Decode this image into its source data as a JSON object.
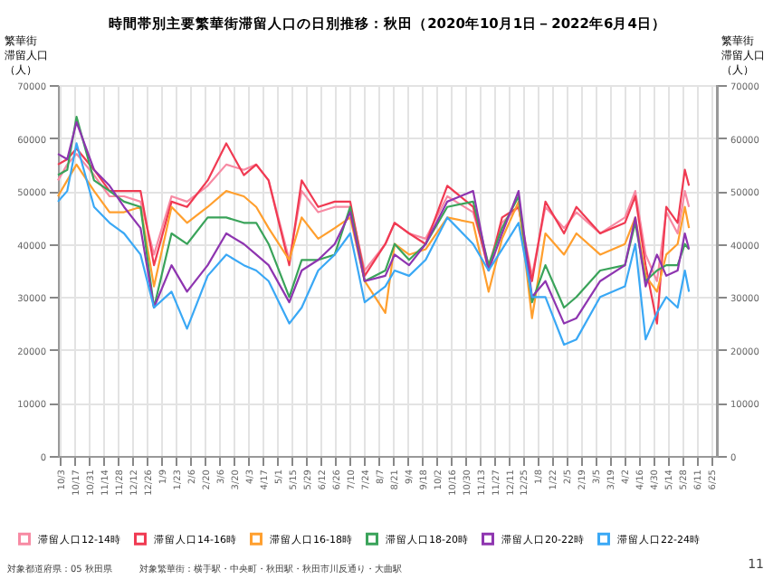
{
  "chart_data": {
    "type": "line",
    "title": "時間帯別主要繁華街滞留人口の日別推移：秋田（2020年10月1日－2022年6月4日）",
    "ylabel": "繁華街滞留人口（人）",
    "y2label": "繁華街滞留人口（人）",
    "x": [
      "2020-10-01",
      "2020-10-10",
      "2020-10-19",
      "2020-11-05",
      "2020-11-20",
      "2020-12-04",
      "2020-12-20",
      "2021-01-02",
      "2021-01-19",
      "2021-02-03",
      "2021-02-23",
      "2021-03-13",
      "2021-03-30",
      "2021-04-11",
      "2021-04-23",
      "2021-05-13",
      "2021-05-25",
      "2021-06-10",
      "2021-06-26",
      "2021-07-11",
      "2021-07-25",
      "2021-08-14",
      "2021-08-23",
      "2021-09-06",
      "2021-09-22",
      "2021-10-13",
      "2021-11-07",
      "2021-11-22",
      "2021-12-05",
      "2021-12-21",
      "2022-01-03",
      "2022-01-16",
      "2022-02-03",
      "2022-02-15",
      "2022-03-10",
      "2022-04-03",
      "2022-04-13",
      "2022-04-23",
      "2022-05-04",
      "2022-05-13",
      "2022-05-24",
      "2022-05-31",
      "2022-06-04"
    ],
    "series": [
      {
        "name": "滞留人口12-14時",
        "color": "#f78aa3",
        "values": [
          52000,
          55000,
          57000,
          53000,
          49000,
          49000,
          48000,
          38000,
          49000,
          48000,
          51000,
          55000,
          54000,
          55000,
          52000,
          37000,
          50000,
          46000,
          47000,
          47000,
          35000,
          40000,
          44000,
          42000,
          41000,
          49000,
          46000,
          36000,
          44000,
          47000,
          34000,
          47000,
          43000,
          46000,
          42000,
          45000,
          50000,
          38000,
          33000,
          46000,
          42000,
          50000,
          47000
        ]
      },
      {
        "name": "滞留人口14-16時",
        "color": "#f03a52",
        "values": [
          55000,
          56000,
          58000,
          54000,
          50000,
          50000,
          50000,
          36000,
          48000,
          47000,
          52000,
          59000,
          53000,
          55000,
          52000,
          36000,
          52000,
          47000,
          48000,
          48000,
          34000,
          40000,
          44000,
          42000,
          40000,
          51000,
          47000,
          35000,
          45000,
          47000,
          33000,
          48000,
          42000,
          47000,
          42000,
          44000,
          49000,
          36000,
          25000,
          47000,
          44000,
          54000,
          51000
        ]
      },
      {
        "name": "滞留人口16-18時",
        "color": "#ff9f2e",
        "values": [
          49000,
          52000,
          55000,
          50000,
          46000,
          46000,
          47000,
          32000,
          47000,
          44000,
          47000,
          50000,
          49000,
          47000,
          43000,
          37000,
          45000,
          41000,
          43000,
          45000,
          33000,
          27000,
          40000,
          38000,
          39000,
          45000,
          44000,
          31000,
          41000,
          48000,
          26000,
          42000,
          38000,
          42000,
          38000,
          40000,
          45000,
          34000,
          31000,
          38000,
          40000,
          47000,
          43000
        ]
      },
      {
        "name": "滞留人口18-20時",
        "color": "#3aa35a",
        "values": [
          53000,
          54000,
          64000,
          52000,
          50000,
          48000,
          47000,
          28000,
          42000,
          40000,
          45000,
          45000,
          44000,
          44000,
          40000,
          30000,
          37000,
          37000,
          38000,
          47000,
          33000,
          35000,
          40000,
          37000,
          40000,
          47000,
          48000,
          36000,
          43000,
          49000,
          29000,
          36000,
          28000,
          30000,
          35000,
          36000,
          44000,
          33000,
          35000,
          36000,
          36000,
          40000,
          39000
        ]
      },
      {
        "name": "滞留人口20-22時",
        "color": "#8e35b0",
        "values": [
          57000,
          56000,
          63000,
          54000,
          51000,
          47000,
          43000,
          28000,
          36000,
          31000,
          36000,
          42000,
          40000,
          38000,
          36000,
          29000,
          35000,
          37000,
          40000,
          46000,
          33000,
          34000,
          38000,
          36000,
          40000,
          48000,
          50000,
          35000,
          42000,
          50000,
          30000,
          33000,
          25000,
          26000,
          33000,
          36000,
          45000,
          32000,
          38000,
          34000,
          35000,
          42000,
          39000
        ]
      },
      {
        "name": "滞留人口22-24時",
        "color": "#3aa8f5",
        "values": [
          48000,
          50000,
          59000,
          47000,
          44000,
          42000,
          38000,
          28000,
          31000,
          24000,
          34000,
          38000,
          36000,
          35000,
          33000,
          25000,
          28000,
          35000,
          38000,
          42000,
          29000,
          32000,
          35000,
          34000,
          37000,
          45000,
          40000,
          35000,
          39000,
          44000,
          30000,
          30000,
          21000,
          22000,
          30000,
          32000,
          40000,
          22000,
          27000,
          30000,
          28000,
          35000,
          31000
        ]
      }
    ],
    "xlim": [
      "2020-10-01",
      "2022-07-01"
    ],
    "xticks": [
      {
        "value": "2020-10-03",
        "label": "10/3"
      },
      {
        "value": "2020-10-17",
        "label": "10/17"
      },
      {
        "value": "2020-10-31",
        "label": "10/31"
      },
      {
        "value": "2020-11-14",
        "label": "11/14"
      },
      {
        "value": "2020-11-28",
        "label": "11/28"
      },
      {
        "value": "2020-12-12",
        "label": "12/12"
      },
      {
        "value": "2020-12-26",
        "label": "12/26"
      },
      {
        "value": "2021-01-09",
        "label": "1/9"
      },
      {
        "value": "2021-01-23",
        "label": "1/23"
      },
      {
        "value": "2021-02-06",
        "label": "2/6"
      },
      {
        "value": "2021-02-20",
        "label": "2/20"
      },
      {
        "value": "2021-03-06",
        "label": "3/6"
      },
      {
        "value": "2021-03-20",
        "label": "3/20"
      },
      {
        "value": "2021-04-03",
        "label": "4/3"
      },
      {
        "value": "2021-04-17",
        "label": "4/17"
      },
      {
        "value": "2021-05-01",
        "label": "5/1"
      },
      {
        "value": "2021-05-15",
        "label": "5/15"
      },
      {
        "value": "2021-05-29",
        "label": "5/29"
      },
      {
        "value": "2021-06-12",
        "label": "6/12"
      },
      {
        "value": "2021-06-26",
        "label": "6/26"
      },
      {
        "value": "2021-07-10",
        "label": "7/10"
      },
      {
        "value": "2021-07-24",
        "label": "7/24"
      },
      {
        "value": "2021-08-07",
        "label": "8/7"
      },
      {
        "value": "2021-08-21",
        "label": "8/21"
      },
      {
        "value": "2021-09-04",
        "label": "9/4"
      },
      {
        "value": "2021-09-18",
        "label": "9/18"
      },
      {
        "value": "2021-10-02",
        "label": "10/2"
      },
      {
        "value": "2021-10-16",
        "label": "10/16"
      },
      {
        "value": "2021-10-30",
        "label": "10/30"
      },
      {
        "value": "2021-11-13",
        "label": "11/13"
      },
      {
        "value": "2021-11-27",
        "label": "11/27"
      },
      {
        "value": "2021-12-11",
        "label": "12/11"
      },
      {
        "value": "2021-12-25",
        "label": "12/25"
      },
      {
        "value": "2022-01-08",
        "label": "1/8"
      },
      {
        "value": "2022-01-22",
        "label": "1/22"
      },
      {
        "value": "2022-02-05",
        "label": "2/5"
      },
      {
        "value": "2022-02-19",
        "label": "2/19"
      },
      {
        "value": "2022-03-05",
        "label": "3/5"
      },
      {
        "value": "2022-03-19",
        "label": "3/19"
      },
      {
        "value": "2022-04-02",
        "label": "4/2"
      },
      {
        "value": "2022-04-16",
        "label": "4/16"
      },
      {
        "value": "2022-04-30",
        "label": "4/30"
      },
      {
        "value": "2022-05-14",
        "label": "5/14"
      },
      {
        "value": "2022-05-28",
        "label": "5/28"
      },
      {
        "value": "2022-06-11",
        "label": "6/11"
      },
      {
        "value": "2022-06-25",
        "label": "6/25"
      }
    ],
    "ylim": [
      0,
      70000
    ],
    "yticks": [
      0,
      10000,
      20000,
      30000,
      40000,
      50000,
      60000,
      70000
    ],
    "y2lim": [
      0,
      70000
    ],
    "y2ticks": [
      0,
      10000,
      20000,
      30000,
      40000,
      50000,
      60000,
      70000
    ],
    "grid": true,
    "legend": "bottom",
    "marker": "none",
    "line_style": "solid",
    "annotations": [
      "対象都道府県：05 秋田県",
      "対象繁華街：横手駅・中央町・秋田駅・秋田市川反通り・大曲駅",
      "11"
    ]
  }
}
